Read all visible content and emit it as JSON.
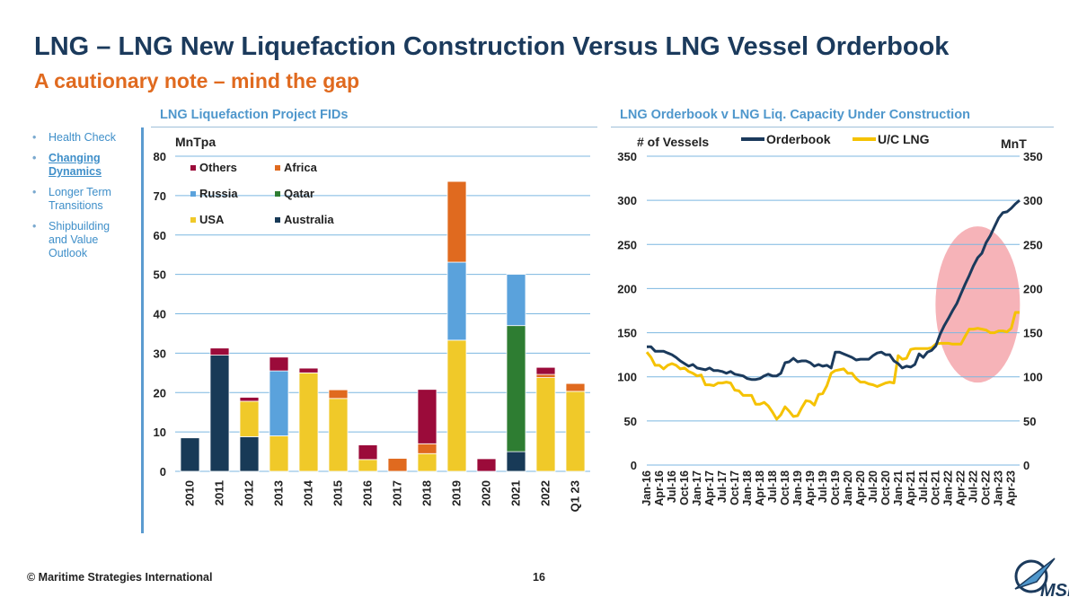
{
  "title": "LNG – LNG New Liquefaction Construction Versus LNG Vessel Orderbook",
  "subtitle": "A cautionary note – mind the gap",
  "nav": [
    {
      "label": "Health Check",
      "active": false
    },
    {
      "label": "Changing Dynamics",
      "active": true
    },
    {
      "label": "Longer Term Transitions",
      "active": false
    },
    {
      "label": "Shipbuilding and Value Outlook",
      "active": false
    }
  ],
  "footer": "© Maritime Strategies International",
  "page_number": "16",
  "logo_text": "MSI",
  "colors": {
    "Others": "#9b0b3a",
    "Africa": "#e06a1f",
    "Russia": "#5aa2dc",
    "Qatar": "#2e7d32",
    "USA": "#f0c929",
    "Australia": "#183a57",
    "orderbook": "#1b3a5c",
    "uc_lng": "#f5c200",
    "highlight": "#f4a6ac"
  },
  "chart_data": [
    {
      "type": "bar",
      "stacked": true,
      "title": "LNG Liquefaction Project FIDs",
      "ylabel": "MnTpa",
      "ylim": [
        0,
        80
      ],
      "yticks": [
        0,
        10,
        20,
        30,
        40,
        50,
        60,
        70,
        80
      ],
      "legend_position": "top-left",
      "categories": [
        "2010",
        "2011",
        "2012",
        "2013",
        "2014",
        "2015",
        "2016",
        "2017",
        "2018",
        "2019",
        "2020",
        "2021",
        "2022",
        "Q1 23"
      ],
      "series": [
        {
          "name": "Australia",
          "values": [
            8.5,
            29.5,
            8.8,
            0,
            0,
            0,
            0,
            0,
            0,
            0,
            0,
            5,
            0,
            0
          ]
        },
        {
          "name": "USA",
          "values": [
            0,
            0,
            9,
            9,
            25,
            18.5,
            3,
            0,
            4.5,
            33.3,
            0,
            0,
            23.8,
            20.3
          ]
        },
        {
          "name": "Qatar",
          "values": [
            0,
            0,
            0,
            0,
            0,
            0,
            0,
            0,
            0,
            0,
            0,
            32,
            0,
            0
          ]
        },
        {
          "name": "Russia",
          "values": [
            0,
            0,
            0,
            16.5,
            0,
            0,
            0,
            0,
            0,
            19.8,
            0,
            13,
            0,
            0
          ]
        },
        {
          "name": "Africa",
          "values": [
            0,
            0,
            0,
            0,
            0,
            2.2,
            0,
            3.3,
            2.5,
            20.5,
            0,
            0,
            0.8,
            2
          ]
        },
        {
          "name": "Others",
          "values": [
            0,
            1.8,
            1,
            3.5,
            1.2,
            0,
            3.7,
            0,
            13.8,
            0,
            3.2,
            0,
            1.8,
            0
          ]
        }
      ],
      "legend_order": [
        "Others",
        "Africa",
        "Russia",
        "Qatar",
        "USA",
        "Australia"
      ]
    },
    {
      "type": "line",
      "title": "LNG Orderbook v LNG Liq. Capacity Under Construction",
      "ylabel_left": "# of Vessels",
      "ylabel_right": "MnT",
      "ylim": [
        0,
        350
      ],
      "yticks": [
        0,
        50,
        100,
        150,
        200,
        250,
        300,
        350
      ],
      "legend_position": "top",
      "x_tick_labels": [
        "Jan-16",
        "Apr-16",
        "Jul-16",
        "Oct-16",
        "Jan-17",
        "Apr-17",
        "Jul-17",
        "Oct-17",
        "Jan-18",
        "Apr-18",
        "Jul-18",
        "Oct-18",
        "Jan-19",
        "Apr-19",
        "Jul-19",
        "Oct-19",
        "Jan-20",
        "Apr-20",
        "Jul-20",
        "Oct-20",
        "Jan-21",
        "Apr-21",
        "Jul-21",
        "Oct-21",
        "Jan-22",
        "Apr-22",
        "Jul-22",
        "Oct-22",
        "Jan-23",
        "Apr-23"
      ],
      "series": [
        {
          "name": "Orderbook",
          "axis": "left",
          "values": [
            134,
            134,
            129,
            129,
            129,
            127,
            125,
            122,
            118,
            115,
            112,
            114,
            110,
            109,
            108,
            110,
            107,
            107,
            106,
            104,
            106,
            103,
            102,
            101,
            98,
            97,
            97,
            98,
            101,
            103,
            101,
            101,
            104,
            116,
            117,
            121,
            117,
            118,
            118,
            116,
            112,
            114,
            112,
            113,
            110,
            128,
            128,
            126,
            124,
            122,
            119,
            120,
            120,
            120,
            124,
            127,
            128,
            125,
            125,
            118,
            115,
            110,
            112,
            111,
            114,
            126,
            122,
            128,
            130,
            135,
            148,
            158,
            166,
            175,
            183,
            194,
            205,
            215,
            226,
            235,
            240,
            252,
            260,
            270,
            280,
            286,
            287,
            291,
            296,
            300
          ]
        },
        {
          "name": "U/C LNG",
          "axis": "right",
          "values": [
            128,
            122,
            113,
            113,
            109,
            113,
            115,
            113,
            109,
            110,
            106,
            104,
            101,
            102,
            91,
            91,
            90,
            93,
            93,
            94,
            93,
            85,
            84,
            79,
            79,
            79,
            69,
            69,
            71,
            67,
            60,
            52,
            57,
            66,
            61,
            55,
            56,
            65,
            73,
            72,
            68,
            80,
            81,
            90,
            104,
            107,
            108,
            109,
            104,
            104,
            98,
            94,
            94,
            92,
            91,
            89,
            91,
            93,
            94,
            93,
            124,
            120,
            121,
            131,
            132,
            132,
            132,
            132,
            133,
            137,
            138,
            138,
            138,
            137,
            137,
            137,
            146,
            154,
            154,
            155,
            154,
            153,
            150,
            150,
            152,
            152,
            151,
            155,
            173,
            173
          ]
        }
      ],
      "annotation": "highlight ellipse around recent orderbook surge (Oct-21 to Apr-23)"
    }
  ]
}
